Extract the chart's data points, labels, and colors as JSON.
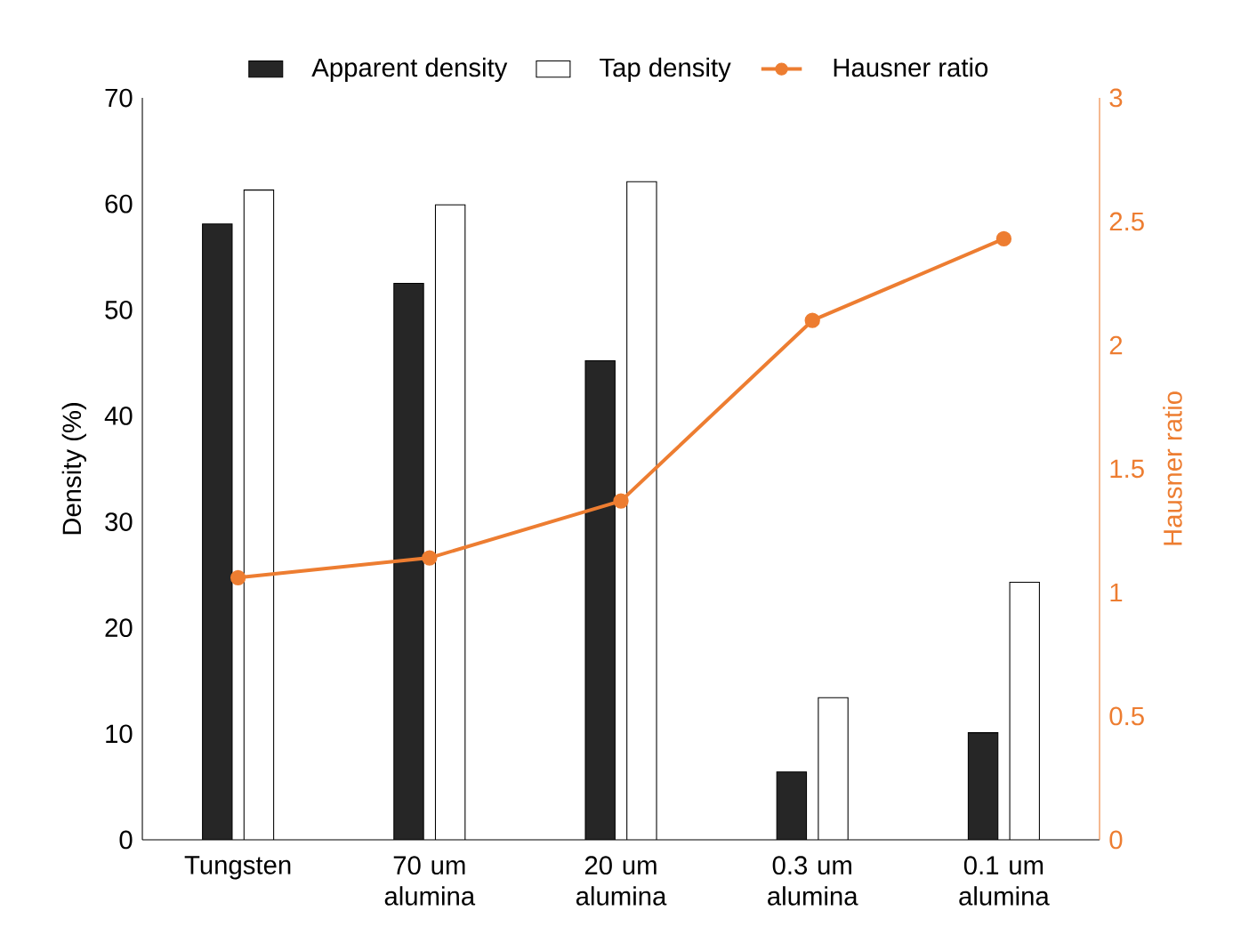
{
  "chart_data": {
    "type": "bar",
    "categories": [
      "Tungsten",
      "70 um alumina",
      "20 um alumina",
      "0.3 um alumina",
      "0.1 um alumina"
    ],
    "series": [
      {
        "name": "Apparent density",
        "color": "#262626",
        "values": [
          58.1,
          52.5,
          45.2,
          6.4,
          10.1
        ]
      },
      {
        "name": "Tap density",
        "color": "#ffffff",
        "values": [
          61.3,
          59.9,
          62.1,
          13.4,
          24.3
        ]
      },
      {
        "name": "Hausner ratio",
        "type": "line",
        "axis": "y2",
        "color": "#ed7d31",
        "values": [
          1.06,
          1.14,
          1.37,
          2.1,
          2.43
        ]
      }
    ],
    "ylabel": "Density (%)",
    "y2label": "Hausner ratio",
    "ylim": [
      0,
      70
    ],
    "yticks": [
      0,
      10,
      20,
      30,
      40,
      50,
      60,
      70
    ],
    "y2lim": [
      0,
      3
    ],
    "y2ticks": [
      0,
      0.5,
      1,
      1.5,
      2,
      2.5,
      3
    ],
    "legend": "top",
    "marker": "circle",
    "grid": false
  }
}
